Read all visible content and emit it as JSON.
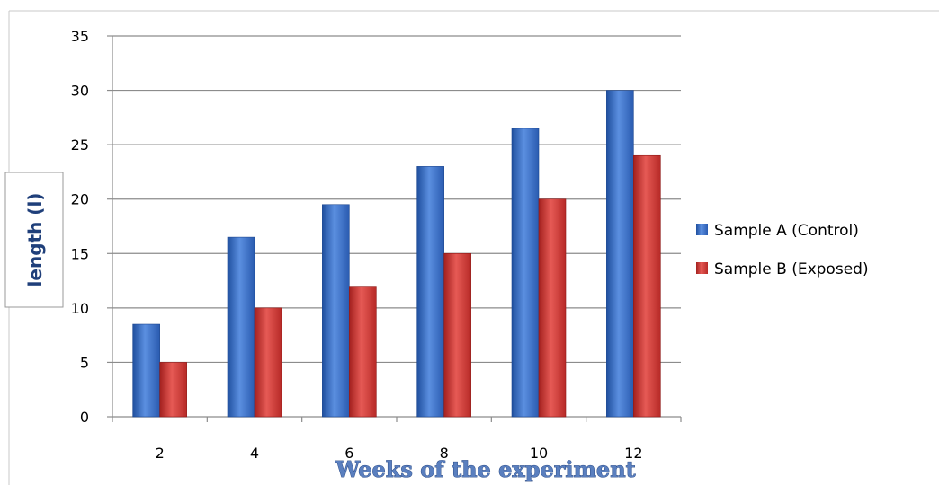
{
  "chart_data": {
    "type": "bar",
    "categories": [
      "2",
      "4",
      "6",
      "8",
      "10",
      "12"
    ],
    "series": [
      {
        "name": "Sample A (Control)",
        "values": [
          8.5,
          16.5,
          19.5,
          23,
          26.5,
          30
        ],
        "color": "#3f74c9"
      },
      {
        "name": "Sample B (Exposed)",
        "values": [
          5,
          10,
          12,
          15,
          20,
          24
        ],
        "color": "#d23a36"
      }
    ],
    "xlabel": "Weeks of the experiment",
    "ylabel": "length (l)",
    "ylim": [
      0,
      35
    ],
    "yticks": [
      "0",
      "5",
      "10",
      "15",
      "20",
      "25",
      "30",
      "35"
    ],
    "grid": true,
    "legend_position": "right"
  }
}
